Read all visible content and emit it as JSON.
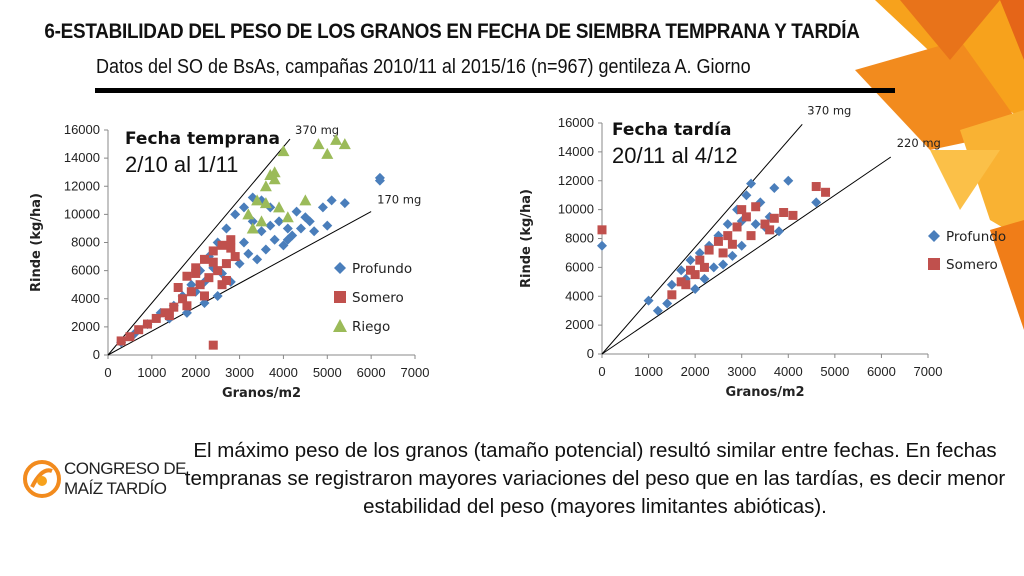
{
  "slide": {
    "title": "6-ESTABILIDAD DEL PESO DE LOS GRANOS EN FECHA DE SIEMBRA TEMPRANA Y TARDÍA",
    "subtitle": "Datos del SO de BsAs, campañas 2010/11 al 2015/16 (n=967) gentileza A. Giorno",
    "body": "El máximo peso de los granos (tamaño potencial) resultó similar entre fechas. En fechas tempranas se registraron mayores variaciones del peso que en las tardías, es decir menor estabilidad del peso (mayores limitantes abióticas).",
    "logo": {
      "line1": "CONGRESO DE",
      "line2": "MAÍZ TARDÍO"
    },
    "accent_color": "#f28b1e"
  },
  "chart_data": [
    {
      "type": "scatter",
      "title": "Fecha temprana",
      "subtitle": "2/10 al 1/11",
      "xlabel": "Granos/m2",
      "ylabel": "Rinde (kg/ha)",
      "xlim": [
        0,
        7000
      ],
      "ylim": [
        0,
        16000
      ],
      "xticks": [
        "0",
        "1000",
        "2000",
        "3000",
        "4000",
        "5000",
        "6000",
        "7000"
      ],
      "yticks": [
        "0",
        "2000",
        "4000",
        "6000",
        "8000",
        "10000",
        "12000",
        "14000",
        "16000"
      ],
      "legend_position": "right",
      "reference_lines": [
        {
          "label": "370 mg",
          "slope": 3.7
        },
        {
          "label": "170 mg",
          "slope": 1.7
        }
      ],
      "series": [
        {
          "name": "Profundo",
          "marker": "diamond",
          "color": "#4a7ebb",
          "points": [
            [
              300,
              900
            ],
            [
              600,
              1500
            ],
            [
              900,
              2200
            ],
            [
              1200,
              3000
            ],
            [
              1500,
              3500
            ],
            [
              1700,
              4200
            ],
            [
              1900,
              5000
            ],
            [
              2100,
              6000
            ],
            [
              2300,
              7000
            ],
            [
              2500,
              8000
            ],
            [
              2700,
              9000
            ],
            [
              2900,
              10000
            ],
            [
              3100,
              10500
            ],
            [
              3300,
              11200
            ],
            [
              3500,
              11000
            ],
            [
              3700,
              10500
            ],
            [
              3900,
              9500
            ],
            [
              4100,
              9000
            ],
            [
              4300,
              10200
            ],
            [
              4500,
              9800
            ],
            [
              4700,
              8800
            ],
            [
              4900,
              10500
            ],
            [
              5100,
              11000
            ],
            [
              5400,
              10800
            ],
            [
              6200,
              12600
            ],
            [
              6200,
              12400
            ],
            [
              2000,
              4500
            ],
            [
              2200,
              3700
            ],
            [
              2500,
              4200
            ],
            [
              2800,
              5200
            ],
            [
              3000,
              6500
            ],
            [
              3200,
              7200
            ],
            [
              3400,
              6800
            ],
            [
              3600,
              7500
            ],
            [
              3800,
              8200
            ],
            [
              4000,
              7800
            ],
            [
              4200,
              8500
            ],
            [
              4400,
              9000
            ],
            [
              1800,
              3000
            ],
            [
              2600,
              5800
            ],
            [
              3100,
              8000
            ],
            [
              3500,
              8800
            ],
            [
              4600,
              9500
            ],
            [
              5000,
              9200
            ],
            [
              1400,
              2600
            ],
            [
              2400,
              6200
            ],
            [
              3300,
              9500
            ],
            [
              3700,
              9200
            ],
            [
              4100,
              8200
            ],
            [
              2200,
              5200
            ]
          ]
        },
        {
          "name": "Somero",
          "marker": "square",
          "color": "#c0504d",
          "points": [
            [
              300,
              1000
            ],
            [
              500,
              1300
            ],
            [
              700,
              1800
            ],
            [
              900,
              2200
            ],
            [
              1100,
              2600
            ],
            [
              1300,
              3000
            ],
            [
              1500,
              3400
            ],
            [
              1700,
              4000
            ],
            [
              1900,
              4500
            ],
            [
              2100,
              5000
            ],
            [
              2300,
              5500
            ],
            [
              2500,
              6000
            ],
            [
              2700,
              6500
            ],
            [
              2900,
              7000
            ],
            [
              1600,
              4800
            ],
            [
              1800,
              5600
            ],
            [
              2000,
              6200
            ],
            [
              2200,
              6800
            ],
            [
              2400,
              7400
            ],
            [
              2600,
              7800
            ],
            [
              2800,
              8200
            ],
            [
              1400,
              2800
            ],
            [
              1800,
              3500
            ],
            [
              2200,
              4200
            ],
            [
              2600,
              5000
            ],
            [
              2000,
              5800
            ],
            [
              2400,
              6600
            ],
            [
              2800,
              7600
            ],
            [
              2400,
              700
            ],
            [
              2700,
              5300
            ]
          ]
        },
        {
          "name": "Riego",
          "marker": "triangle",
          "color": "#9bbb59",
          "points": [
            [
              3200,
              10000
            ],
            [
              3400,
              11000
            ],
            [
              3600,
              12000
            ],
            [
              3800,
              13000
            ],
            [
              4000,
              14500
            ],
            [
              3800,
              12500
            ],
            [
              3700,
              12800
            ],
            [
              4100,
              9800
            ],
            [
              3500,
              9500
            ],
            [
              3300,
              9000
            ],
            [
              4800,
              15000
            ],
            [
              5200,
              15300
            ],
            [
              5000,
              14300
            ],
            [
              5400,
              15000
            ],
            [
              4500,
              11000
            ],
            [
              3900,
              10500
            ],
            [
              3600,
              10800
            ]
          ]
        }
      ]
    },
    {
      "type": "scatter",
      "title": "Fecha tardía",
      "subtitle": "20/11 al 4/12",
      "xlabel": "Granos/m2",
      "ylabel": "Rinde (kg/ha)",
      "xlim": [
        0,
        7000
      ],
      "ylim": [
        0,
        16000
      ],
      "xticks": [
        "0",
        "1000",
        "2000",
        "3000",
        "4000",
        "5000",
        "6000",
        "7000"
      ],
      "yticks": [
        "0",
        "2000",
        "4000",
        "6000",
        "8000",
        "10000",
        "12000",
        "14000",
        "16000"
      ],
      "legend_position": "right",
      "reference_lines": [
        {
          "label": "370 mg",
          "slope": 3.7
        },
        {
          "label": "220 mg",
          "slope": 2.2
        }
      ],
      "series": [
        {
          "name": "Profundo",
          "marker": "diamond",
          "color": "#4a7ebb",
          "points": [
            [
              0,
              7500
            ],
            [
              1000,
              3700
            ],
            [
              1200,
              3000
            ],
            [
              1400,
              3500
            ],
            [
              1500,
              4800
            ],
            [
              1700,
              5800
            ],
            [
              1900,
              6500
            ],
            [
              2100,
              7000
            ],
            [
              2300,
              7500
            ],
            [
              2500,
              8200
            ],
            [
              2700,
              9000
            ],
            [
              2900,
              10000
            ],
            [
              3100,
              11000
            ],
            [
              3200,
              11800
            ],
            [
              3400,
              10500
            ],
            [
              3600,
              9500
            ],
            [
              3800,
              8500
            ],
            [
              3000,
              7500
            ],
            [
              2800,
              6800
            ],
            [
              2600,
              6200
            ],
            [
              2200,
              5200
            ],
            [
              2000,
              4500
            ],
            [
              3300,
              9000
            ],
            [
              3500,
              8800
            ],
            [
              3700,
              11500
            ],
            [
              4000,
              12000
            ],
            [
              4600,
              10500
            ],
            [
              2400,
              6000
            ],
            [
              3000,
              9200
            ],
            [
              1800,
              5200
            ]
          ]
        },
        {
          "name": "Somero",
          "marker": "square",
          "color": "#c0504d",
          "points": [
            [
              0,
              8600
            ],
            [
              1500,
              4100
            ],
            [
              1700,
              5000
            ],
            [
              1900,
              5800
            ],
            [
              2100,
              6500
            ],
            [
              2300,
              7200
            ],
            [
              2500,
              7800
            ],
            [
              2700,
              8200
            ],
            [
              2900,
              8800
            ],
            [
              3100,
              9500
            ],
            [
              3300,
              10200
            ],
            [
              3500,
              9000
            ],
            [
              3700,
              9400
            ],
            [
              3900,
              9800
            ],
            [
              4100,
              9600
            ],
            [
              4600,
              11600
            ],
            [
              4800,
              11200
            ],
            [
              3000,
              10000
            ],
            [
              2600,
              7000
            ],
            [
              2200,
              6000
            ],
            [
              2000,
              5500
            ],
            [
              1800,
              4800
            ],
            [
              3200,
              8200
            ],
            [
              2800,
              7600
            ],
            [
              3600,
              8600
            ]
          ]
        }
      ]
    }
  ]
}
